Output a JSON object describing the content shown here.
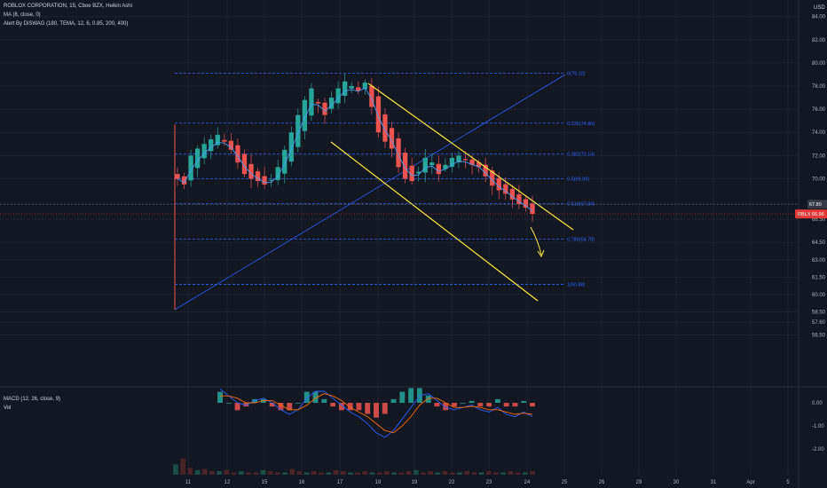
{
  "header": {
    "symbol_line": "ROBLOX CORPORATION, 15, Cboe BZX, Heikin Ashi",
    "indicator_ma": "MA (8, close, 0)",
    "indicator_alert": "Alert By DiSWAG (180, TEMA, 12, 6, 0.85, 200, 400)",
    "macd_label": "MACD (12, 26, close, 9)",
    "vol_label": "Vol",
    "currency": "USD"
  },
  "price_tag": {
    "symbol": "RBLX",
    "value": "66.96",
    "text": "RBLX 66.96",
    "color": "#e53935"
  },
  "crosshair_tag": {
    "text": "67.80"
  },
  "colors": {
    "up": "#26a69a",
    "down": "#ef5350",
    "fib": "#2962ff",
    "channel": "#ffeb3b",
    "background": "#131722"
  },
  "chart_data": [
    {
      "type": "candlestick",
      "title": "ROBLOX CORPORATION, 15, Cboe BZX, Heikin Ashi",
      "x_ticks": [
        "11",
        "12",
        "15",
        "16",
        "17",
        "18",
        "19",
        "22",
        "23",
        "24",
        "25",
        "26",
        "29",
        "30",
        "31",
        "Apr",
        "5"
      ],
      "y_ticks": [
        "84.00",
        "82.00",
        "80.00",
        "78.00",
        "76.00",
        "74.00",
        "72.00",
        "70.00",
        "67.80",
        "66.50",
        "64.50",
        "63.00",
        "61.50",
        "60.00",
        "58.50",
        "57.60",
        "56.50"
      ],
      "y_range": [
        56.0,
        85.5
      ],
      "series_close": [
        70.0,
        69.5,
        72.0,
        72.6,
        73.0,
        73.4,
        73.8,
        73.2,
        72.5,
        71.4,
        70.4,
        70.0,
        69.8,
        69.5,
        69.9,
        71.0,
        72.5,
        74.0,
        75.5,
        76.8,
        77.8,
        76.5,
        75.5,
        77.0,
        77.8,
        78.4,
        78.0,
        77.6,
        78.3,
        76.2,
        74.0,
        73.2,
        72.6,
        71.0,
        70.0,
        69.8,
        70.6,
        71.8,
        71.4,
        70.4,
        71.2,
        71.8,
        72.0,
        71.6,
        71.2,
        71.0,
        70.2,
        69.4,
        69.0,
        68.7,
        68.2,
        67.8,
        67.5,
        66.96
      ],
      "fib_levels": [
        {
          "ratio": "0",
          "price": 79.1,
          "label": "0(79.10)"
        },
        {
          "ratio": "0.236",
          "price": 74.8,
          "label": "0.236(74.80)"
        },
        {
          "ratio": "0.382",
          "price": 72.14,
          "label": "0.382(72.14)"
        },
        {
          "ratio": "0.5",
          "price": 69.99,
          "label": "0.5(69.99)"
        },
        {
          "ratio": "0.618",
          "price": 67.84,
          "label": "0.618(67.84)"
        },
        {
          "ratio": "0.786",
          "price": 64.78,
          "label": "0.786(64.78)"
        },
        {
          "ratio": "1",
          "price": 60.88,
          "label": "1(60.88)"
        }
      ],
      "last_price": 66.96
    },
    {
      "type": "bar",
      "title": "MACD (12, 26, close, 9)",
      "y_ticks": [
        "0.00",
        "-1.00",
        "-2.00"
      ],
      "y_range": [
        -2.6,
        0.9
      ],
      "macd_line": [
        0.6,
        0.3,
        0.0,
        -0.1,
        0.1,
        0.2,
        0.0,
        -0.3,
        -0.5,
        -0.3,
        0.2,
        0.5,
        0.5,
        0.2,
        -0.1,
        -0.4,
        -0.6,
        -0.9,
        -1.3,
        -1.5,
        -1.2,
        -0.7,
        -0.2,
        0.3,
        0.4,
        0.1,
        -0.2,
        -0.3,
        -0.2,
        -0.1,
        -0.3,
        -0.4,
        -0.2,
        -0.5,
        -0.6,
        -0.4,
        -0.6
      ],
      "signal_line": [
        0.3,
        0.3,
        0.2,
        0.0,
        0.0,
        0.1,
        0.1,
        -0.1,
        -0.3,
        -0.3,
        -0.1,
        0.2,
        0.4,
        0.3,
        0.1,
        -0.2,
        -0.4,
        -0.6,
        -0.9,
        -1.2,
        -1.3,
        -1.0,
        -0.6,
        -0.1,
        0.2,
        0.2,
        0.0,
        -0.2,
        -0.2,
        -0.15,
        -0.2,
        -0.3,
        -0.3,
        -0.4,
        -0.5,
        -0.45,
        -0.5
      ]
    },
    {
      "type": "bar",
      "title": "Vol",
      "values": [
        9,
        14,
        6,
        4,
        5,
        3,
        3,
        4,
        2,
        3,
        2,
        2,
        4,
        3,
        2,
        2,
        5,
        3,
        2,
        3,
        2,
        2,
        4,
        3,
        2,
        2,
        3,
        2,
        2,
        3,
        2,
        2,
        3,
        4,
        2,
        3,
        2,
        3,
        2,
        2,
        3,
        2,
        2,
        3,
        2,
        2,
        3,
        2,
        2,
        3
      ]
    }
  ]
}
